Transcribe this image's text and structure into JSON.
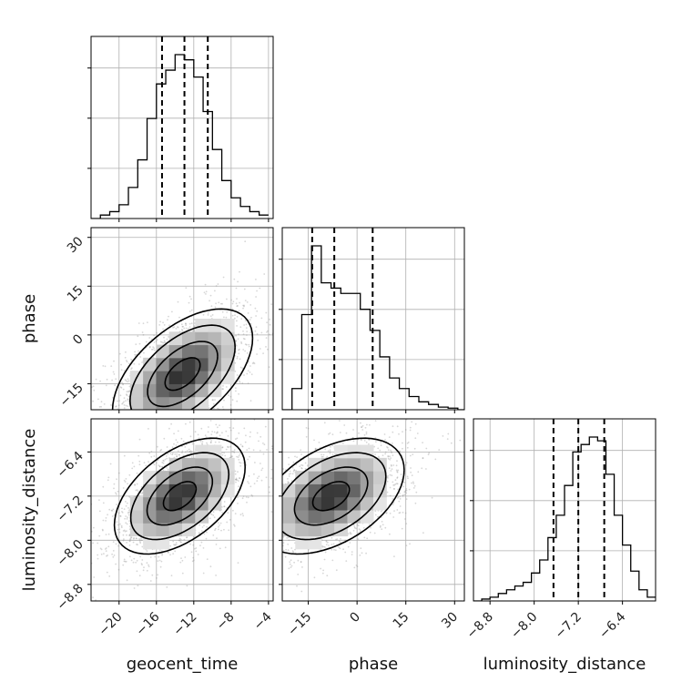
{
  "chart_data": {
    "type": "corner",
    "parameters": [
      "geocent_time",
      "phase",
      "luminosity_distance"
    ],
    "axes": {
      "geocent_time": {
        "range": [
          -23,
          -3.5
        ],
        "ticks": [
          -20,
          -16,
          -12,
          -8,
          -4
        ],
        "tick_labels": [
          "−20",
          "−16",
          "−12",
          "−8",
          "−4"
        ]
      },
      "phase": {
        "range": [
          -23,
          33
        ],
        "ticks": [
          -15,
          0,
          15,
          30
        ],
        "tick_labels": [
          "−15",
          "0",
          "15",
          "30"
        ]
      },
      "luminosity_distance": {
        "range": [
          -9.1,
          -5.8
        ],
        "ticks": [
          -8.8,
          -8.0,
          -7.2,
          -6.4
        ],
        "tick_labels": [
          "−8.8",
          "−8.0",
          "−7.2",
          "−6.4"
        ]
      }
    },
    "histograms": [
      {
        "param": "geocent_time",
        "bin_edges": [
          -23.0,
          -22.0,
          -21.0,
          -20.0,
          -19.0,
          -18.0,
          -17.0,
          -16.0,
          -15.0,
          -14.0,
          -13.0,
          -12.0,
          -11.0,
          -10.0,
          -9.0,
          -8.0,
          -7.0,
          -6.0,
          -5.0,
          -4.0
        ],
        "counts": [
          0,
          2,
          4,
          8,
          18,
          34,
          58,
          78,
          86,
          95,
          92,
          82,
          62,
          40,
          22,
          12,
          7,
          4,
          2
        ],
        "quantiles": [
          -15.4,
          -13.0,
          -10.5
        ]
      },
      {
        "param": "phase",
        "bin_edges": [
          -23,
          -20,
          -17,
          -14,
          -11,
          -8,
          -5,
          -2,
          1,
          4,
          7,
          10,
          13,
          16,
          19,
          22,
          25,
          28,
          31,
          33
        ],
        "counts": [
          0,
          4,
          18,
          31,
          24,
          23,
          22,
          22,
          19,
          15,
          10,
          6,
          4,
          2.5,
          1.5,
          1,
          0.5,
          0.3,
          0
        ],
        "quantiles": [
          -13.8,
          -7.0,
          4.8
        ]
      },
      {
        "param": "luminosity_distance",
        "bin_edges": [
          -9.1,
          -8.95,
          -8.8,
          -8.65,
          -8.5,
          -8.35,
          -8.2,
          -8.05,
          -7.9,
          -7.75,
          -7.6,
          -7.45,
          -7.3,
          -7.15,
          -7.0,
          -6.85,
          -6.7,
          -6.55,
          -6.4,
          -6.25,
          -6.1,
          -5.95,
          -5.8
        ],
        "counts": [
          0,
          1,
          2,
          4,
          6,
          8,
          10,
          15,
          22,
          34,
          46,
          62,
          80,
          84,
          88,
          86,
          68,
          46,
          30,
          16,
          6,
          2
        ],
        "quantiles": [
          -7.65,
          -7.2,
          -6.73
        ]
      }
    ],
    "contour_panels": [
      {
        "x_param": "geocent_time",
        "y_param": "phase",
        "center": [
          -13.2,
          -12.0
        ],
        "spread": [
          3.0,
          8.0
        ],
        "correlation": 0.55
      },
      {
        "x_param": "geocent_time",
        "y_param": "luminosity_distance",
        "center": [
          -13.5,
          -7.2
        ],
        "spread": [
          2.8,
          0.42
        ],
        "correlation": 0.5
      },
      {
        "x_param": "phase",
        "y_param": "luminosity_distance",
        "center": [
          -8.0,
          -7.2
        ],
        "spread": [
          9.0,
          0.42
        ],
        "correlation": 0.45
      }
    ],
    "contour_levels_sigma": [
      0.5,
      1.0,
      1.5,
      2.0
    ],
    "grid": true,
    "colors": {
      "ink": "#000000",
      "grid": "#b0b0b0",
      "scatter": "#8c8c8c",
      "hist_fill_dark": "#000000"
    }
  }
}
